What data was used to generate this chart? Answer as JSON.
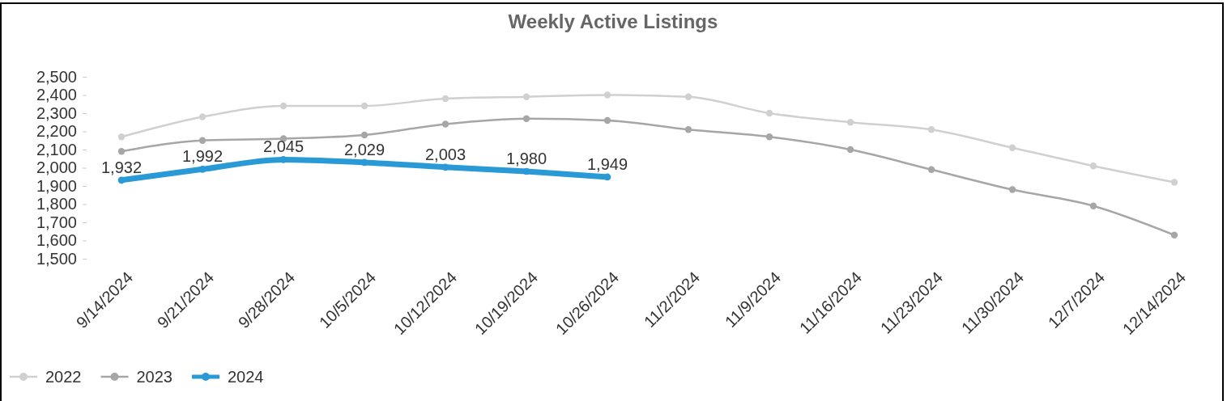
{
  "chart_data": {
    "type": "line",
    "title": "Weekly Active Listings",
    "categories": [
      "9/14/2024",
      "9/21/2024",
      "9/28/2024",
      "10/5/2024",
      "10/12/2024",
      "10/19/2024",
      "10/26/2024",
      "11/2/2024",
      "11/9/2024",
      "11/16/2024",
      "11/23/2024",
      "11/30/2024",
      "12/7/2024",
      "12/14/2024"
    ],
    "series": [
      {
        "name": "2022",
        "color": "#d0d0d0",
        "values": [
          2170,
          2280,
          2340,
          2340,
          2380,
          2390,
          2400,
          2390,
          2300,
          2250,
          2210,
          2110,
          2010,
          1920
        ]
      },
      {
        "name": "2023",
        "color": "#a6a6a9",
        "values": [
          2090,
          2150,
          2160,
          2180,
          2240,
          2270,
          2260,
          2210,
          2170,
          2100,
          1990,
          1880,
          1790,
          1630
        ]
      },
      {
        "name": "2024",
        "color": "#2a9ad6",
        "values": [
          1932,
          1992,
          2045,
          2029,
          2003,
          1980,
          1949,
          null,
          null,
          null,
          null,
          null,
          null,
          null
        ],
        "value_labels": [
          "1,932",
          "1,992",
          "2,045",
          "2,029",
          "2,003",
          "1,980",
          "1,949",
          null,
          null,
          null,
          null,
          null,
          null,
          null
        ]
      }
    ],
    "ylim": [
      1500,
      2500
    ],
    "yticks": [
      {
        "value": 1500,
        "label": "1,500"
      },
      {
        "value": 1600,
        "label": "1,600"
      },
      {
        "value": 1700,
        "label": "1,700"
      },
      {
        "value": 1800,
        "label": "1,800"
      },
      {
        "value": 1900,
        "label": "1,900"
      },
      {
        "value": 2000,
        "label": "2,000"
      },
      {
        "value": 2100,
        "label": "2,100"
      },
      {
        "value": 2200,
        "label": "2,200"
      },
      {
        "value": 2300,
        "label": "2,300"
      },
      {
        "value": 2400,
        "label": "2,400"
      },
      {
        "value": 2500,
        "label": "2,500"
      }
    ],
    "grid": false,
    "legend": "bottom left",
    "marker": "circle",
    "line_style": "solid"
  }
}
